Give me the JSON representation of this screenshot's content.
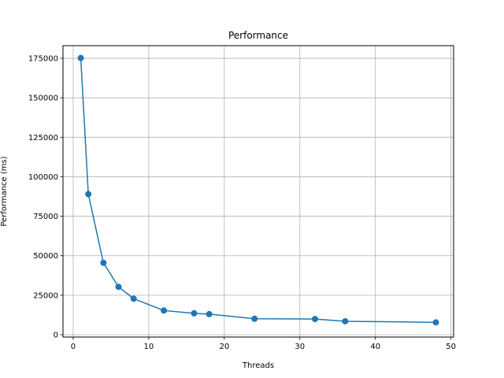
{
  "chart_data": {
    "type": "line",
    "title": "Performance",
    "xlabel": "Threads",
    "ylabel": "Performance (ms)",
    "x": [
      1,
      2,
      4,
      6,
      8,
      12,
      16,
      18,
      24,
      32,
      36,
      48
    ],
    "series": [
      {
        "values": [
          175200,
          89000,
          45500,
          30300,
          22800,
          15300,
          13500,
          13000,
          10100,
          9900,
          8500,
          7800
        ],
        "color": "#1f77b4",
        "marker": "circle"
      }
    ],
    "xlim": [
      -1.35,
      50.35
    ],
    "ylim": [
      -1500,
      183000
    ],
    "xticks": [
      0,
      10,
      20,
      30,
      40,
      50
    ],
    "xtick_labels": [
      "0",
      "10",
      "20",
      "30",
      "40",
      "50"
    ],
    "yticks": [
      0,
      25000,
      50000,
      75000,
      100000,
      125000,
      150000,
      175000
    ],
    "ytick_labels": [
      "0",
      "25000",
      "50000",
      "75000",
      "100000",
      "125000",
      "150000",
      "175000"
    ],
    "grid": true,
    "legend": "none"
  }
}
